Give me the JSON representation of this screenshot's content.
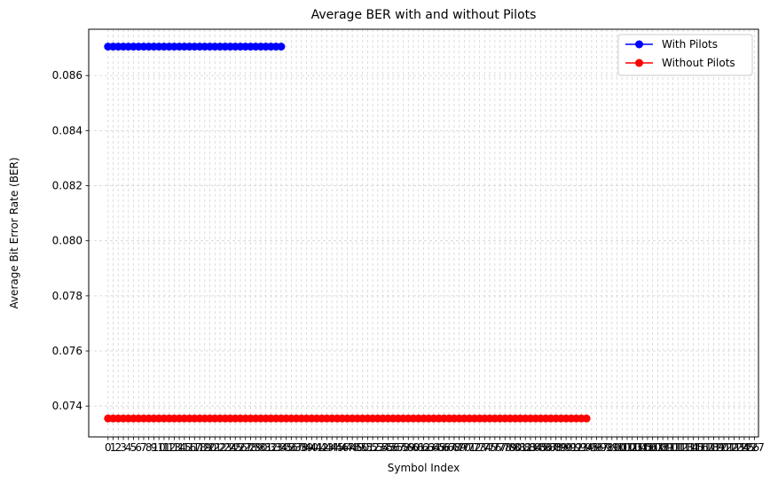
{
  "chart_data": {
    "type": "line",
    "title": "Average BER with and without Pilots",
    "xlabel": "Symbol Index",
    "ylabel": "Average Bit Error Rate (BER)",
    "xlim": [
      -3.8,
      127.8
    ],
    "ylim": [
      0.07288,
      0.08768
    ],
    "x_ticks": [
      0,
      1,
      2,
      3,
      4,
      5,
      6,
      7,
      8,
      9,
      10,
      11,
      12,
      13,
      14,
      15,
      16,
      17,
      18,
      19,
      20,
      21,
      22,
      23,
      24,
      25,
      26,
      27,
      28,
      29,
      30,
      31,
      32,
      33,
      34,
      35,
      36,
      37,
      38,
      39,
      40,
      41,
      42,
      43,
      44,
      45,
      46,
      47,
      48,
      49,
      50,
      51,
      52,
      53,
      54,
      55,
      56,
      57,
      58,
      59,
      60,
      61,
      62,
      63,
      64,
      65,
      66,
      67,
      68,
      69,
      70,
      71,
      72,
      73,
      74,
      75,
      76,
      77,
      78,
      79,
      80,
      81,
      82,
      83,
      84,
      85,
      86,
      87,
      88,
      89,
      90,
      91,
      92,
      93,
      94,
      95,
      96,
      97,
      98,
      99,
      100,
      101,
      102,
      103,
      104,
      105,
      106,
      107,
      108,
      109,
      110,
      111,
      112,
      113,
      114,
      115,
      116,
      117,
      118,
      119,
      120,
      121,
      122,
      123,
      124,
      125,
      126,
      127
    ],
    "y_ticks": [
      0.074,
      0.076,
      0.078,
      0.08,
      0.082,
      0.084,
      0.086
    ],
    "y_tick_labels": [
      "0.074",
      "0.076",
      "0.078",
      "0.080",
      "0.082",
      "0.084",
      "0.086"
    ],
    "grid": true,
    "legend_position": "top-right",
    "series": [
      {
        "name": "With Pilots",
        "color": "#0000ff",
        "marker": "circle",
        "x_start": 0,
        "x_end": 34,
        "value": 0.08705
      },
      {
        "name": "Without Pilots",
        "color": "#ff0000",
        "marker": "circle",
        "x_start": 0,
        "x_end": 94,
        "value": 0.07355
      }
    ]
  }
}
